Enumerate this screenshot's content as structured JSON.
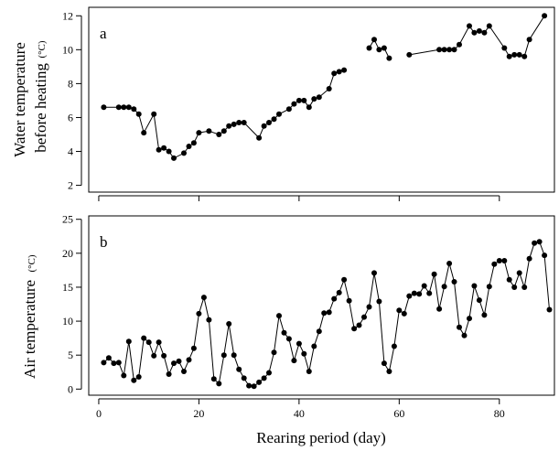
{
  "chart_data": [
    {
      "type": "line",
      "panel_label": "a",
      "ylabel_lines": [
        "Water temperature",
        "before heating"
      ],
      "ylabel_unit": "(°C)",
      "xlim": [
        -2,
        91
      ],
      "ylim": [
        1.6,
        12.5
      ],
      "yticks": [
        2,
        4,
        6,
        8,
        10,
        12
      ],
      "grid": false,
      "segments": [
        {
          "x": [
            1,
            4,
            5,
            6,
            7,
            8,
            9,
            11,
            12,
            13,
            14,
            15,
            17,
            18,
            19,
            20,
            22,
            24,
            25,
            26,
            27,
            28,
            29,
            32,
            33,
            34,
            35,
            36,
            38,
            39,
            40,
            41,
            42,
            43,
            44,
            46,
            47,
            48,
            49
          ],
          "y": [
            6.6,
            6.6,
            6.6,
            6.6,
            6.5,
            6.2,
            5.1,
            6.2,
            4.1,
            4.2,
            4.0,
            3.6,
            3.9,
            4.3,
            4.5,
            5.1,
            5.2,
            5.0,
            5.2,
            5.5,
            5.6,
            5.7,
            5.7,
            4.8,
            5.5,
            5.7,
            5.9,
            6.2,
            6.5,
            6.8,
            7.0,
            7.0,
            6.6,
            7.1,
            7.2,
            7.7,
            8.6,
            8.7,
            8.8
          ]
        },
        {
          "x": [
            54,
            55,
            56,
            57,
            58
          ],
          "y": [
            10.1,
            10.6,
            10.0,
            10.1,
            9.5
          ]
        },
        {
          "x": [
            62,
            68,
            69,
            70,
            71,
            72,
            74,
            75,
            76,
            77,
            78,
            81,
            82,
            83,
            84,
            85,
            86,
            89
          ],
          "y": [
            9.7,
            10.0,
            10.0,
            10.0,
            10.0,
            10.3,
            11.4,
            11.0,
            11.1,
            11.0,
            11.4,
            10.1,
            9.6,
            9.7,
            9.7,
            9.6,
            10.6,
            12.0
          ]
        }
      ]
    },
    {
      "type": "line",
      "panel_label": "b",
      "ylabel_lines": [
        "Air temperature"
      ],
      "ylabel_unit": "(°C)",
      "xlabel": "Rearing period (day)",
      "xlim": [
        -2,
        91
      ],
      "ylim": [
        -0.9,
        25.5
      ],
      "yticks": [
        0,
        5,
        10,
        15,
        20,
        25
      ],
      "xticks": [
        0,
        20,
        40,
        60,
        80
      ],
      "grid": false,
      "segments": [
        {
          "x": [
            1,
            2,
            3,
            4,
            5,
            6,
            7,
            8,
            9,
            10,
            11,
            12,
            13,
            14,
            15,
            16,
            17,
            18,
            19,
            20,
            21,
            22,
            23,
            24,
            25,
            26,
            27,
            28,
            29,
            30,
            31,
            32,
            33,
            34,
            35,
            36,
            37,
            38,
            39,
            40,
            41,
            42,
            43,
            44,
            45,
            46,
            47,
            48,
            49,
            50,
            51,
            52,
            53,
            54,
            55,
            56,
            57,
            58,
            59,
            60,
            61,
            62,
            63,
            64,
            65,
            66,
            67,
            68,
            69,
            70,
            71,
            72,
            73,
            74,
            75,
            76,
            77,
            78,
            79,
            80,
            81,
            82,
            83,
            84,
            85,
            86,
            87,
            88,
            89,
            90
          ],
          "y": [
            3.9,
            4.6,
            3.8,
            3.9,
            2.0,
            7.0,
            1.3,
            1.8,
            7.5,
            6.9,
            4.9,
            6.9,
            4.9,
            2.2,
            3.8,
            4.1,
            2.6,
            4.3,
            6.0,
            11.1,
            13.5,
            10.2,
            1.5,
            0.8,
            5.0,
            9.6,
            5.0,
            2.9,
            1.6,
            0.5,
            0.4,
            1.0,
            1.6,
            2.4,
            5.4,
            10.8,
            8.3,
            7.4,
            4.2,
            6.7,
            5.2,
            2.6,
            6.3,
            8.5,
            11.2,
            11.3,
            13.3,
            14.2,
            16.1,
            13.0,
            8.9,
            9.4,
            10.6,
            12.1,
            17.1,
            12.9,
            3.8,
            2.6,
            6.3,
            11.6,
            11.1,
            13.7,
            14.1,
            14.0,
            15.2,
            14.1,
            16.9,
            11.8,
            15.1,
            18.5,
            15.8,
            9.1,
            7.9,
            10.4,
            15.2,
            13.1,
            10.9,
            15.1,
            18.4,
            18.9,
            18.9,
            16.1,
            15.0,
            17.1,
            15.0,
            19.2,
            21.5,
            21.7,
            19.7,
            11.7
          ]
        }
      ]
    }
  ]
}
